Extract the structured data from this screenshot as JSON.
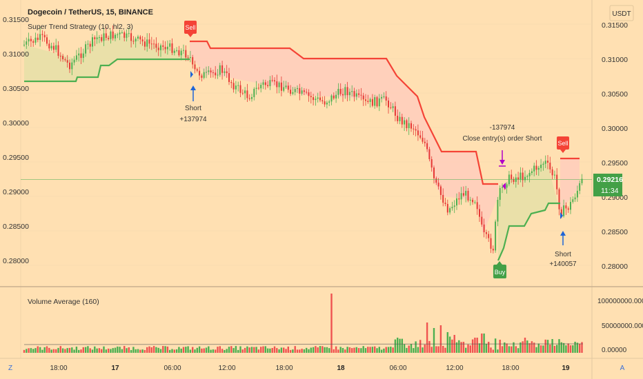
{
  "header": {
    "symbol": "Dogecoin / TetherUS, 15, BINANCE",
    "strategy": "Super Trend Strategy (10, hl2, 3)",
    "currency": "USDT"
  },
  "price_axis": {
    "ticks": [
      "0.31500",
      "0.31000",
      "0.30500",
      "0.30000",
      "0.29500",
      "0.29000",
      "0.28500",
      "0.28000"
    ],
    "left_ticks": [
      "0.31500",
      "0.31000",
      "0.30500",
      "0.30000",
      "0.29500",
      "0.29000",
      "0.28500",
      "0.28000"
    ],
    "current_price": "0.29216",
    "countdown": "11:34"
  },
  "volume_pane": {
    "title": "Volume Average (160)",
    "ticks": [
      "100000000.00000",
      "50000000.00000",
      "0.00000"
    ]
  },
  "time_axis": {
    "ticks": [
      "18:00",
      "17",
      "06:00",
      "12:00",
      "18:00",
      "18",
      "06:00",
      "12:00",
      "18:00",
      "19"
    ]
  },
  "signals": {
    "sell_1": "Sell",
    "short_1_label": "Short",
    "short_1_value": "+137974",
    "close_value": "-137974",
    "close_label": "Close entry(s) order Short",
    "sell_2": "Sell",
    "buy": "Buy",
    "short_2_label": "Short",
    "short_2_value": "+140057"
  },
  "footer": {
    "left_button": "Z",
    "right_button": "A"
  },
  "colors": {
    "background": "#ffe0b2",
    "uptrend_line": "#4caf50",
    "downtrend_line": "#f44336",
    "down_fill": "#ffccbc",
    "up_fill": "#e6dfa7",
    "candle_up": "#4caf50",
    "candle_down": "#e53935",
    "vol_up": "#4caf50",
    "vol_down": "#ef5350",
    "entry_arrow": "#1e64d6",
    "close_arrow": "#b000c8",
    "price_tag": "#43a047"
  }
}
